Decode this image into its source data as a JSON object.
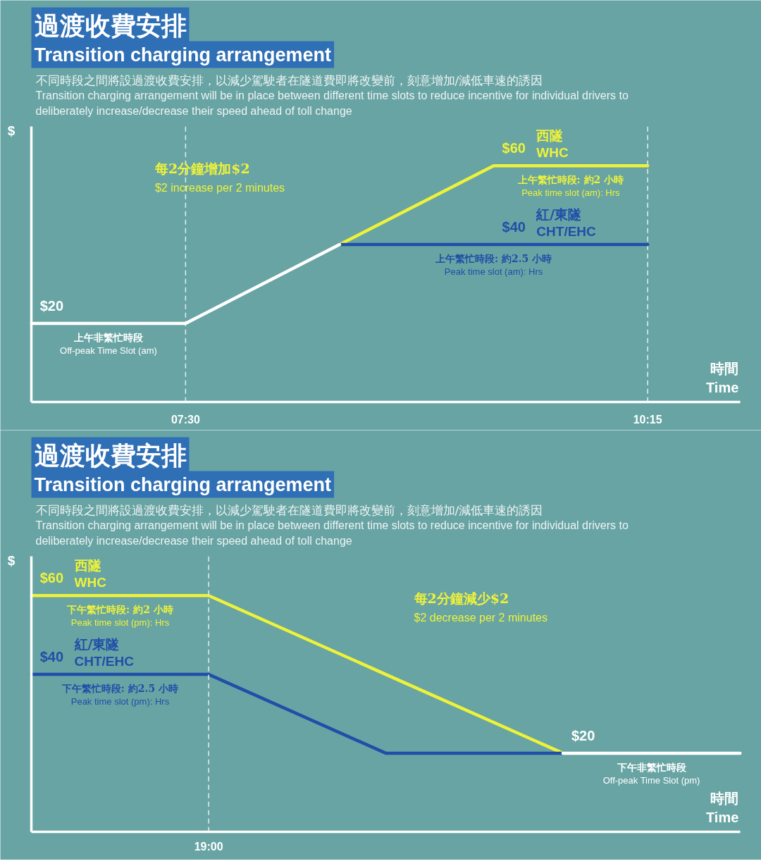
{
  "chart_data": [
    {
      "type": "line",
      "title": "過渡收費安排\nTransition charging arrangement",
      "subtitle": "不同時段之間將設過渡收費安排，以減少駕駛者在隧道費即將改變前，刻意增加/減低車速的誘因\nTransition charging arrangement will be in place between different time slots to reduce incentive for individual drivers to\ndeliberately increase/decrease their speed ahead of toll change",
      "xlabel": "時間\nTime",
      "ylabel": "$",
      "categories": [
        null,
        "07:30",
        null,
        null,
        "10:15"
      ],
      "ylim": [
        0,
        70
      ],
      "series": [
        {
          "name": "西隧\nWHC",
          "color": "#eef23a",
          "values": [
            null,
            null,
            40,
            60,
            60
          ],
          "value_labels": [
            null,
            null,
            null,
            "$60",
            null
          ]
        },
        {
          "name": "紅/東隧\nCHT/EHC",
          "color": "#1f4fa8",
          "values": [
            null,
            null,
            40,
            40,
            40
          ],
          "value_labels": [
            null,
            null,
            null,
            "$40",
            null
          ]
        },
        {
          "color": "#ffffff",
          "values": [
            20,
            20,
            40,
            null,
            null
          ],
          "value_labels": [
            "$20",
            null,
            null,
            null,
            null
          ]
        }
      ],
      "annotations": [
        "每2分鐘增加$2\n$2 increase per 2 minutes",
        {
          "text": "上午繁忙時段: 約2 小時\nPeak time slot (am): Hrs",
          "y": 60
        },
        {
          "text": "上午繁忙時段: 約2.5 小時\nPeak time slot (am): Hrs",
          "y": 40
        },
        {
          "text": "上午非繁忙時段\nOff-peak Time Slot (am)",
          "y": 20
        }
      ],
      "grid": "x",
      "tick_labels": "x"
    },
    {
      "type": "line",
      "title": "過渡收費安排\nTransition charging arrangement",
      "subtitle": "不同時段之間將設過渡收費安排，以減少駕駛者在隧道費即將改變前，刻意增加/減低車速的誘因\nTransition charging arrangement will be in place between different time slots to reduce incentive for individual drivers to\ndeliberately increase/decrease their speed ahead of toll change",
      "xlabel": "時間\nTime",
      "ylabel": "$",
      "categories": [
        null,
        null,
        null,
        null,
        null
      ],
      "ylim": [
        0,
        70
      ],
      "series": [
        {
          "name": "西隧\nWHC",
          "color": "#eef23a",
          "values": [
            60,
            60,
            40,
            20,
            null
          ],
          "value_labels": [
            "$60",
            null,
            null,
            null,
            null
          ]
        },
        {
          "name": "紅/東隧\nCHT/EHC",
          "color": "#1f4fa8",
          "values": [
            40,
            40,
            20,
            20,
            null
          ],
          "value_labels": [
            "$40",
            null,
            null,
            null,
            null
          ]
        },
        {
          "color": "#ffffff",
          "values": [
            null,
            null,
            null,
            20,
            20
          ],
          "value_labels": [
            null,
            null,
            null,
            "$20",
            null
          ]
        }
      ],
      "annotations": [
        "每2分鐘減少$2\n$2 decrease per 2 minutes",
        {
          "text": "下午繁忙時段: 約2 小時\nPeak time slot (pm): Hrs",
          "y": 60
        },
        {
          "text": "下午繁忙時段: 約2.5 小時\nPeak time slot (pm): Hrs",
          "y": 40
        },
        {
          "text": "下午非繁忙時段\nOff-peak Time Slot (pm)",
          "y": 20
        },
        "19:00"
      ],
      "tick_labels": false
    }
  ]
}
